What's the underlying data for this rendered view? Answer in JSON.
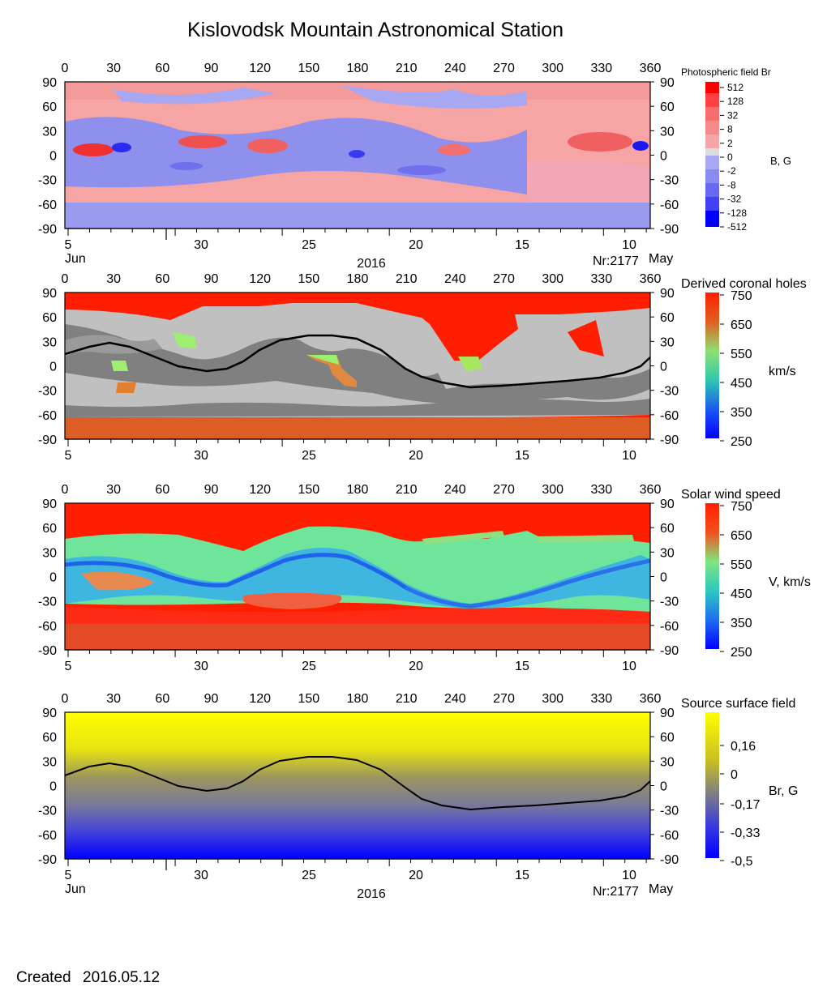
{
  "title": "Kislovodsk Mountain Astronomical Station",
  "created_label": "Created",
  "created_date": "2016.05.12",
  "lon_ticks": [
    "0",
    "30",
    "60",
    "90",
    "120",
    "150",
    "180",
    "210",
    "240",
    "270",
    "300",
    "330",
    "360"
  ],
  "lat_ticks": [
    "90",
    "60",
    "30",
    "0",
    "-30",
    "-60",
    "-90"
  ],
  "date_ticks": [
    "5",
    "30",
    "25",
    "20",
    "15",
    "10"
  ],
  "date_left_label": "Jun",
  "date_right_label": "May",
  "year_label": "2016",
  "rotation_label": "Nr:2177",
  "panels": [
    {
      "id": "photospheric",
      "colorbar_title": "Photospheric field Br",
      "unit": "B, G",
      "colorbar_ticks": [
        "512",
        "128",
        "32",
        "8",
        "2",
        "0",
        "-2",
        "-8",
        "-32",
        "-128",
        "-512"
      ],
      "colors": {
        "positive": "#ff0000",
        "pos_soft": "#f8a6a6",
        "zero": "#dcdcdc",
        "neg_soft": "#a8a8f4",
        "negative": "#0000ff"
      }
    },
    {
      "id": "coronal_holes",
      "colorbar_title": "Derived coronal holes",
      "unit": "km/s",
      "colorbar_ticks": [
        "750",
        "650",
        "550",
        "450",
        "350",
        "250"
      ],
      "colors": {
        "closed_light": "#c0c0c0",
        "closed_dark": "#808080"
      }
    },
    {
      "id": "solar_wind",
      "colorbar_title": "Solar wind speed",
      "unit": "V, km/s",
      "colorbar_ticks": [
        "750",
        "650",
        "550",
        "450",
        "350",
        "250"
      ]
    },
    {
      "id": "source_surface",
      "colorbar_title": "Source surface field",
      "unit": "Br, G",
      "colorbar_ticks": [
        "0,16",
        "0",
        "-0,17",
        "-0,33",
        "-0,5"
      ],
      "colors": {
        "top": "#ffff00",
        "mid": "#808080",
        "bottom": "#0000ff"
      }
    }
  ],
  "chart_data": [
    {
      "type": "heatmap",
      "title": "Photospheric field Br",
      "xlabel": "",
      "ylabel": "",
      "xlim": [
        0,
        360
      ],
      "ylim": [
        -90,
        90
      ],
      "colorbar_range": [
        -512,
        512
      ],
      "colorbar_scale": "log-symmetric"
    },
    {
      "type": "heatmap",
      "title": "Derived coronal holes",
      "xlim": [
        0,
        360
      ],
      "ylim": [
        -90,
        90
      ],
      "colorbar_range": [
        250,
        750
      ],
      "neutral_line": {
        "x": [
          0,
          30,
          60,
          90,
          120,
          150,
          180,
          210,
          240,
          270,
          300,
          330,
          360
        ],
        "y": [
          12,
          28,
          14,
          0,
          18,
          35,
          28,
          -5,
          -25,
          -24,
          -21,
          -18,
          8
        ]
      }
    },
    {
      "type": "heatmap",
      "title": "Solar wind speed",
      "xlim": [
        0,
        360
      ],
      "ylim": [
        -90,
        90
      ],
      "colorbar_range": [
        250,
        750
      ]
    },
    {
      "type": "heatmap",
      "title": "Source surface field",
      "xlim": [
        0,
        360
      ],
      "ylim": [
        -90,
        90
      ],
      "colorbar_range": [
        -0.5,
        0.25
      ],
      "neutral_line": {
        "x": [
          0,
          30,
          60,
          90,
          120,
          150,
          180,
          210,
          240,
          270,
          300,
          330,
          360
        ],
        "y": [
          12,
          28,
          14,
          0,
          18,
          35,
          28,
          -5,
          -25,
          -24,
          -21,
          -18,
          8
        ]
      }
    }
  ]
}
